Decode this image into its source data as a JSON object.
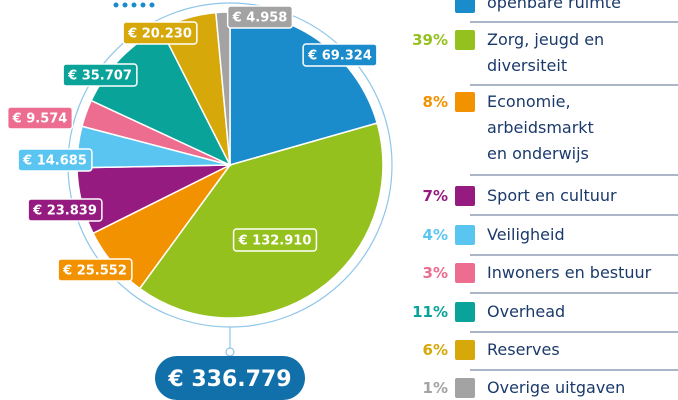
{
  "chart_data": {
    "type": "pie",
    "categories": [
      "openbare ruimte",
      "Zorg, jeugd en\ndiversiteit",
      "Economie,\narbeidsmarkt\nen onderwijs",
      "Sport en cultuur",
      "Veiligheid",
      "Inwoners en bestuur",
      "Overhead",
      "Reserves",
      "Overige uitgaven"
    ],
    "values": [
      69324,
      132910,
      25552,
      23839,
      14685,
      9574,
      35707,
      20230,
      4958
    ],
    "value_labels": [
      "€ 69.324",
      "€ 132.910",
      "€ 25.552",
      "€ 23.839",
      "€ 14.685",
      "€ 9.574",
      "€ 35.707",
      "€ 20.230",
      "€ 4.958"
    ],
    "colors": [
      "#1a8ccc",
      "#95c11f",
      "#f39200",
      "#951b81",
      "#5bc5f2",
      "#ec6d8f",
      "#0aa39a",
      "#d6a80a",
      "#a3a3a3"
    ],
    "legend_percents": [
      null,
      "39%",
      "8%",
      "7%",
      "4%",
      "3%",
      "11%",
      "6%",
      "1%"
    ],
    "total": 336779,
    "total_label": "€ 336.779"
  }
}
